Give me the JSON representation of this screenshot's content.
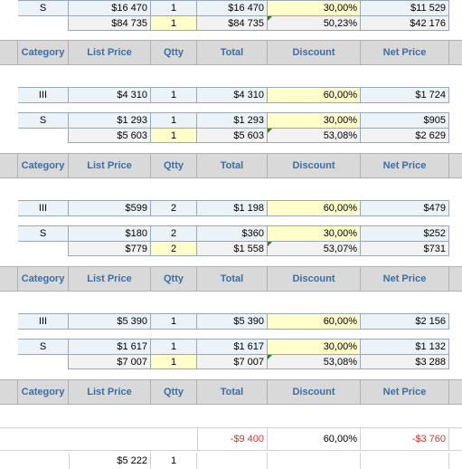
{
  "headers": {
    "category": "Category",
    "list_price": "List Price",
    "qtty": "Qtty",
    "total": "Total",
    "discount": "Discount",
    "net_price": "Net Price"
  },
  "group0": {
    "item": {
      "category": "S",
      "list_price": "$16 470",
      "qtty": "1",
      "total": "$16 470",
      "discount": "30,00%",
      "net_price": "$11 529"
    },
    "total": {
      "list_price": "$84 735",
      "qtty": "1",
      "total": "$84 735",
      "discount": "50,23%",
      "net_price": "$42 176"
    }
  },
  "group1": {
    "item_a": {
      "category": "III",
      "list_price": "$4 310",
      "qtty": "1",
      "total": "$4 310",
      "discount": "60,00%",
      "net_price": "$1 724"
    },
    "item_b": {
      "category": "S",
      "list_price": "$1 293",
      "qtty": "1",
      "total": "$1 293",
      "discount": "30,00%",
      "net_price": "$905"
    },
    "total": {
      "list_price": "$5 603",
      "qtty": "1",
      "total": "$5 603",
      "discount": "53,08%",
      "net_price": "$2 629"
    }
  },
  "group2": {
    "item_a": {
      "category": "III",
      "list_price": "$599",
      "qtty": "2",
      "total": "$1 198",
      "discount": "60,00%",
      "net_price": "$479"
    },
    "item_b": {
      "category": "S",
      "list_price": "$180",
      "qtty": "2",
      "total": "$360",
      "discount": "30,00%",
      "net_price": "$252"
    },
    "total": {
      "list_price": "$779",
      "qtty": "2",
      "total": "$1 558",
      "discount": "53,07%",
      "net_price": "$731"
    }
  },
  "group3": {
    "item_a": {
      "category": "III",
      "list_price": "$5 390",
      "qtty": "1",
      "total": "$5 390",
      "discount": "60,00%",
      "net_price": "$2 156"
    },
    "item_b": {
      "category": "S",
      "list_price": "$1 617",
      "qtty": "1",
      "total": "$1 617",
      "discount": "30,00%",
      "net_price": "$1 132"
    },
    "total": {
      "list_price": "$7 007",
      "qtty": "1",
      "total": "$7 007",
      "discount": "53,08%",
      "net_price": "$3 288"
    }
  },
  "summary": {
    "total": "-$9 400",
    "discount": "60,00%",
    "net_price": "-$3 760"
  },
  "trailing": {
    "list_price": "$5 222",
    "qtty": "1"
  },
  "colors": {
    "header_text": "#3b6ea5",
    "negative": "#e03030",
    "item_fill": "#ebf3f8",
    "discount_fill": "#ffffcc",
    "total_fill": "#f2f2f2"
  }
}
